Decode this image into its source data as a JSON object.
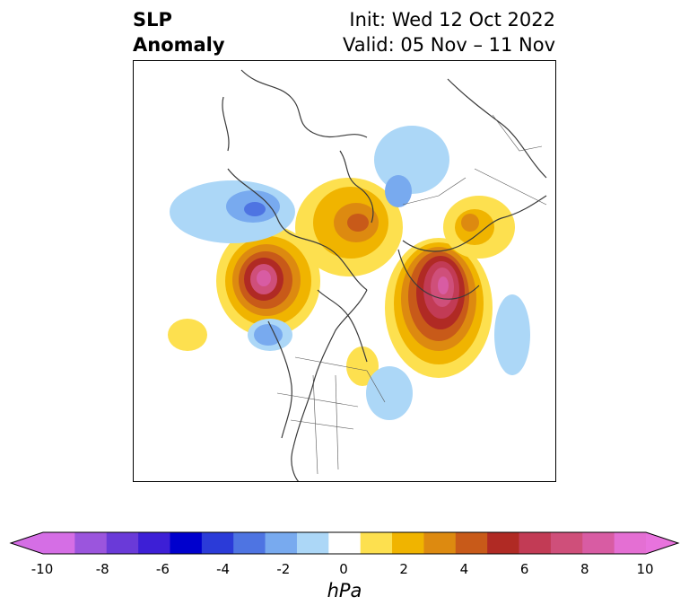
{
  "title": {
    "left_line1": "SLP",
    "left_line2": "Anomaly",
    "right_line1": "Init: Wed 12 Oct 2022",
    "right_line2": "Valid: 05 Nov – 11 Nov"
  },
  "colorbar": {
    "unit": "hPa",
    "ticks": [
      "-10",
      "-8",
      "-6",
      "-4",
      "-2",
      "0",
      "2",
      "4",
      "6",
      "8",
      "10"
    ],
    "levels": [
      -10,
      -9,
      -8,
      -7,
      -6,
      -5,
      -4,
      -3,
      -2,
      -1,
      1,
      2,
      3,
      4,
      5,
      6,
      7,
      8,
      9,
      10
    ],
    "colors": [
      "#d56ee5",
      "#9b55dd",
      "#6a3ad8",
      "#3d1fd6",
      "#0000cd",
      "#2b3bd8",
      "#4e74e2",
      "#78aaef",
      "#acd7f7",
      "#ffffff",
      "#fde04f",
      "#f0b400",
      "#dd8a10",
      "#c85a19",
      "#b02a24",
      "#c23b55",
      "#cf4f7a",
      "#d85ca3",
      "#e46fd3"
    ],
    "under_color": "#d56ee5",
    "over_color": "#e873dd"
  },
  "map": {
    "projection": "north-polar-stereographic",
    "field": "sea-level-pressure-anomaly"
  }
}
